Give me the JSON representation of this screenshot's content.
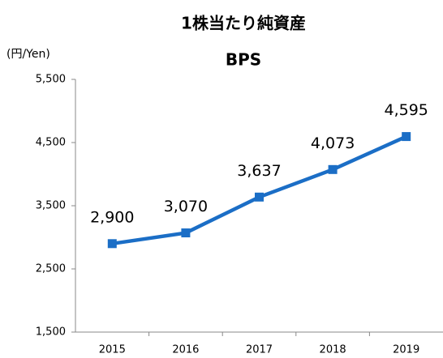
{
  "chart_data": {
    "type": "line",
    "title": "1株当たり純資産",
    "subtitle": "BPS",
    "y_label": "(円/Yen)",
    "categories": [
      "2015",
      "2016",
      "2017",
      "2018",
      "2019"
    ],
    "series": [
      {
        "name": "BPS",
        "color": "#1b6ec6",
        "values": [
          2900,
          3070,
          3637,
          4073,
          4595
        ],
        "value_labels": [
          "2,900",
          "3,070",
          "3,637",
          "4,073",
          "4,595"
        ]
      }
    ],
    "ylim": [
      1500,
      5500
    ],
    "yticks": [
      {
        "value": 1500,
        "label": "1,500"
      },
      {
        "value": 2500,
        "label": "2,500"
      },
      {
        "value": 3500,
        "label": "3,500"
      },
      {
        "value": 4500,
        "label": "4,500"
      },
      {
        "value": 5500,
        "label": "5,500"
      }
    ],
    "grid": false
  }
}
